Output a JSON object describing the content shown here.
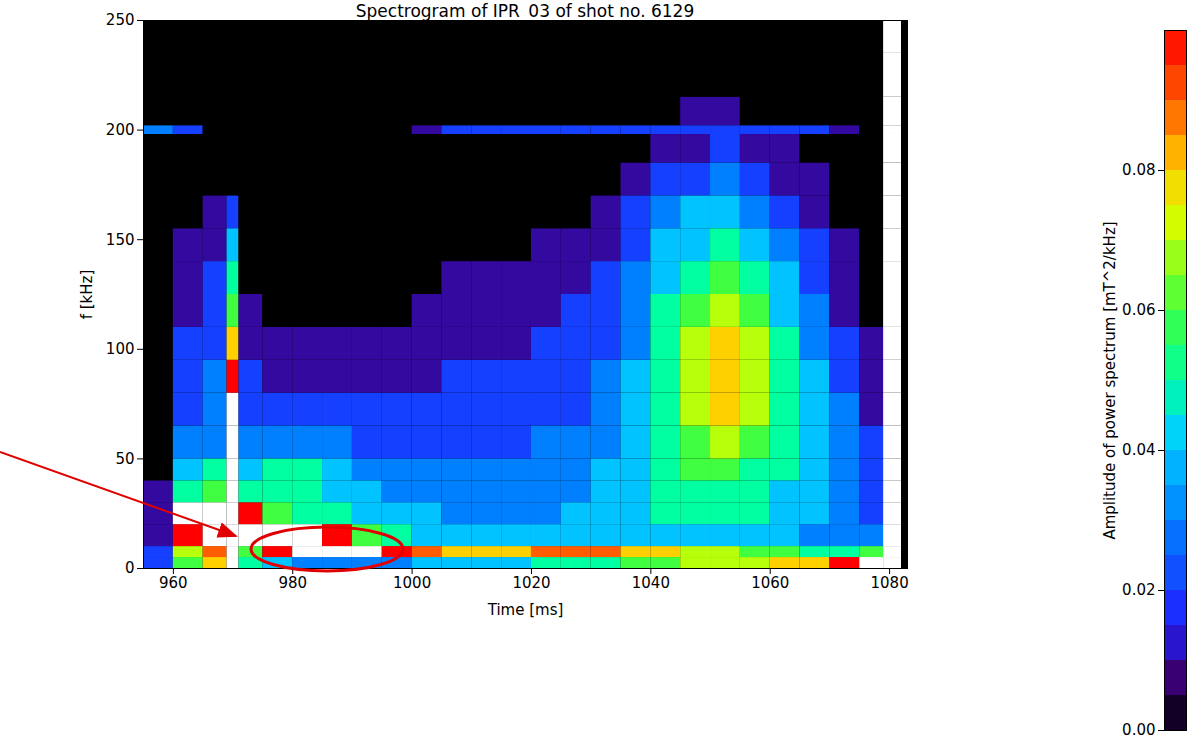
{
  "chart_data": {
    "type": "heatmap",
    "title": "Spectrogram of IPR_03 of shot no. 6129",
    "x_label": "Time [ms]",
    "y_label": "f [kHz]",
    "xlim": [
      955,
      1083
    ],
    "xticks": [
      960,
      980,
      1000,
      1020,
      1040,
      1060,
      1080
    ],
    "ylim": [
      0,
      250
    ],
    "yticks": [
      0,
      50,
      100,
      150,
      200,
      250
    ],
    "time_edges": [
      955,
      960,
      965,
      969,
      971,
      975,
      980,
      985,
      990,
      995,
      1000,
      1005,
      1010,
      1015,
      1020,
      1025,
      1030,
      1035,
      1040,
      1045,
      1050,
      1055,
      1060,
      1065,
      1070,
      1075,
      1079,
      1082,
      1083
    ],
    "freq_edges": [
      0,
      5,
      10,
      20,
      30,
      40,
      50,
      65,
      80,
      95,
      110,
      125,
      140,
      155,
      170,
      185,
      198,
      202,
      215,
      235,
      250
    ],
    "cells": [
      [
        0.02,
        0.06,
        0.08,
        0.12,
        0.05,
        0.04,
        0.03,
        0.03,
        0.03,
        0.03,
        0.04,
        0.04,
        0.04,
        0.04,
        0.05,
        0.05,
        0.05,
        0.06,
        0.06,
        0.07,
        0.07,
        0.07,
        0.08,
        0.08,
        0.1,
        0.12,
        0.12,
        0
      ],
      [
        0.02,
        0.07,
        0.09,
        0.12,
        0.06,
        0.1,
        0.12,
        0.12,
        0.12,
        0.1,
        0.09,
        0.08,
        0.08,
        0.08,
        0.09,
        0.09,
        0.09,
        0.08,
        0.08,
        0.07,
        0.07,
        0.06,
        0.06,
        0.05,
        0.05,
        0.06,
        0.12,
        0
      ],
      [
        0.01,
        0.1,
        0.12,
        0.12,
        0.12,
        0.12,
        0.12,
        0.1,
        0.06,
        0.05,
        0.04,
        0.04,
        0.04,
        0.04,
        0.04,
        0.04,
        0.04,
        0.04,
        0.04,
        0.04,
        0.04,
        0.04,
        0.04,
        0.03,
        0.03,
        0.03,
        0.12,
        0
      ],
      [
        0.01,
        0.12,
        0.12,
        0.12,
        0.1,
        0.06,
        0.05,
        0.05,
        0.04,
        0.04,
        0.04,
        0.03,
        0.03,
        0.03,
        0.03,
        0.04,
        0.04,
        0.04,
        0.05,
        0.05,
        0.05,
        0.05,
        0.04,
        0.04,
        0.03,
        0.02,
        0.12,
        0
      ],
      [
        0.01,
        0.05,
        0.06,
        0.12,
        0.05,
        0.05,
        0.05,
        0.04,
        0.04,
        0.03,
        0.03,
        0.03,
        0.03,
        0.03,
        0.03,
        0.03,
        0.04,
        0.04,
        0.05,
        0.05,
        0.05,
        0.05,
        0.04,
        0.04,
        0.03,
        0.02,
        0.12,
        0
      ],
      [
        0,
        0.04,
        0.05,
        0.12,
        0.04,
        0.05,
        0.05,
        0.04,
        0.03,
        0.03,
        0.03,
        0.03,
        0.03,
        0.03,
        0.03,
        0.03,
        0.04,
        0.04,
        0.05,
        0.06,
        0.06,
        0.05,
        0.05,
        0.04,
        0.03,
        0.02,
        0.12,
        0
      ],
      [
        0,
        0.03,
        0.03,
        0.12,
        0.03,
        0.03,
        0.03,
        0.03,
        0.02,
        0.02,
        0.02,
        0.02,
        0.02,
        0.02,
        0.03,
        0.03,
        0.03,
        0.04,
        0.05,
        0.06,
        0.07,
        0.06,
        0.05,
        0.04,
        0.03,
        0.02,
        0.12,
        0
      ],
      [
        0,
        0.02,
        0.03,
        0.12,
        0.02,
        0.02,
        0.02,
        0.02,
        0.02,
        0.02,
        0.02,
        0.02,
        0.02,
        0.02,
        0.02,
        0.02,
        0.03,
        0.04,
        0.05,
        0.07,
        0.08,
        0.07,
        0.05,
        0.04,
        0.03,
        0.01,
        0.12,
        0
      ],
      [
        0,
        0.02,
        0.03,
        0.1,
        0.02,
        0.01,
        0.01,
        0.01,
        0.01,
        0.01,
        0.01,
        0.02,
        0.02,
        0.02,
        0.02,
        0.02,
        0.03,
        0.04,
        0.05,
        0.07,
        0.08,
        0.07,
        0.05,
        0.04,
        0.02,
        0.01,
        0.12,
        0
      ],
      [
        0,
        0.02,
        0.02,
        0.08,
        0.01,
        0.01,
        0.01,
        0.01,
        0.01,
        0.01,
        0.01,
        0.01,
        0.01,
        0.01,
        0.02,
        0.02,
        0.02,
        0.03,
        0.05,
        0.07,
        0.08,
        0.07,
        0.05,
        0.03,
        0.02,
        0.01,
        0.12,
        0
      ],
      [
        0,
        0.01,
        0.02,
        0.06,
        0.01,
        0,
        0,
        0,
        0,
        0,
        0.01,
        0.01,
        0.01,
        0.01,
        0.01,
        0.02,
        0.02,
        0.03,
        0.05,
        0.06,
        0.07,
        0.06,
        0.04,
        0.03,
        0.01,
        0,
        0.12,
        0
      ],
      [
        0,
        0.01,
        0.02,
        0.05,
        0,
        0,
        0,
        0,
        0,
        0,
        0,
        0.01,
        0.01,
        0.01,
        0.01,
        0.01,
        0.02,
        0.03,
        0.04,
        0.05,
        0.06,
        0.05,
        0.04,
        0.02,
        0.01,
        0,
        0.12,
        0
      ],
      [
        0,
        0.01,
        0.01,
        0.04,
        0,
        0,
        0,
        0,
        0,
        0,
        0,
        0,
        0,
        0,
        0.01,
        0.01,
        0.01,
        0.02,
        0.04,
        0.04,
        0.05,
        0.04,
        0.03,
        0.02,
        0.01,
        0,
        0.12,
        0
      ],
      [
        0,
        0,
        0.01,
        0.02,
        0,
        0,
        0,
        0,
        0,
        0,
        0,
        0,
        0,
        0,
        0,
        0,
        0.01,
        0.02,
        0.03,
        0.04,
        0.04,
        0.03,
        0.02,
        0.01,
        0,
        0,
        0.12,
        0
      ],
      [
        0,
        0,
        0,
        0,
        0,
        0,
        0,
        0,
        0,
        0,
        0,
        0,
        0,
        0,
        0,
        0,
        0,
        0.01,
        0.02,
        0.02,
        0.03,
        0.02,
        0.01,
        0.01,
        0,
        0,
        0.12,
        0
      ],
      [
        0,
        0,
        0,
        0,
        0,
        0,
        0,
        0,
        0,
        0,
        0,
        0,
        0,
        0,
        0,
        0,
        0,
        0,
        0.01,
        0.01,
        0.02,
        0.01,
        0.01,
        0,
        0,
        0,
        0.12,
        0
      ],
      [
        0.03,
        0.02,
        0,
        0,
        0,
        0,
        0,
        0,
        0,
        0,
        0.01,
        0.02,
        0.02,
        0.02,
        0.02,
        0.02,
        0.02,
        0.02,
        0.02,
        0.02,
        0.02,
        0.02,
        0.02,
        0.02,
        0.01,
        0,
        0.12,
        0
      ],
      [
        0,
        0,
        0,
        0,
        0,
        0,
        0,
        0,
        0,
        0,
        0,
        0,
        0,
        0,
        0,
        0,
        0,
        0,
        0,
        0.01,
        0.01,
        0,
        0,
        0,
        0,
        0,
        0.12,
        0
      ],
      [
        0,
        0,
        0,
        0,
        0,
        0,
        0,
        0,
        0,
        0,
        0,
        0,
        0,
        0,
        0,
        0,
        0,
        0,
        0,
        0,
        0,
        0,
        0,
        0,
        0,
        0,
        0.12,
        0
      ],
      [
        0,
        0,
        0,
        0,
        0,
        0,
        0,
        0,
        0,
        0,
        0,
        0,
        0,
        0,
        0,
        0,
        0,
        0,
        0,
        0,
        0,
        0,
        0,
        0,
        0,
        0,
        0.12,
        0
      ]
    ],
    "colorbar": {
      "label": "Amplitude of power spectrum [mT^2/kHz]",
      "range": [
        0,
        0.1
      ],
      "ticks": [
        {
          "value": 0,
          "label": "0.00"
        },
        0.02,
        0.04,
        0.06,
        0.08
      ]
    }
  }
}
